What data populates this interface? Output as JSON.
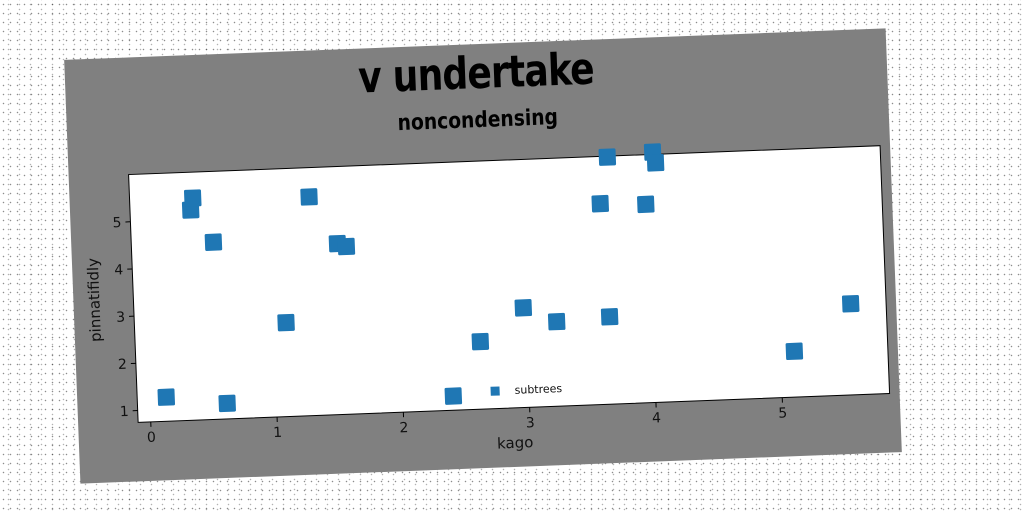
{
  "chart_data": {
    "type": "scatter",
    "title": "v undertake",
    "subtitle": "noncondensing",
    "xlabel": "kago",
    "ylabel": "pinnatifidly",
    "xlim": [
      -0.1,
      5.85
    ],
    "ylim": [
      0.75,
      6.0
    ],
    "xticks": [
      0,
      1,
      2,
      3,
      4,
      5
    ],
    "yticks": [
      1,
      2,
      3,
      4,
      5
    ],
    "grid": false,
    "legend_position": "bottom-center",
    "series": [
      {
        "name": "subtrees",
        "color": "#1f77b4",
        "marker": "square",
        "points": [
          {
            "x": 0.13,
            "y": 1.26
          },
          {
            "x": 0.38,
            "y": 5.2
          },
          {
            "x": 0.4,
            "y": 5.45
          },
          {
            "x": 0.55,
            "y": 4.5
          },
          {
            "x": 0.61,
            "y": 1.08
          },
          {
            "x": 1.1,
            "y": 2.74
          },
          {
            "x": 1.32,
            "y": 5.38
          },
          {
            "x": 1.53,
            "y": 4.37
          },
          {
            "x": 1.6,
            "y": 4.3
          },
          {
            "x": 2.4,
            "y": 1.05
          },
          {
            "x": 2.63,
            "y": 2.18
          },
          {
            "x": 2.98,
            "y": 2.86
          },
          {
            "x": 3.24,
            "y": 2.54
          },
          {
            "x": 3.62,
            "y": 5.0
          },
          {
            "x": 3.66,
            "y": 2.6
          },
          {
            "x": 3.69,
            "y": 5.98
          },
          {
            "x": 3.98,
            "y": 4.95
          },
          {
            "x": 4.05,
            "y": 6.05
          },
          {
            "x": 4.07,
            "y": 5.82
          },
          {
            "x": 5.11,
            "y": 1.72
          },
          {
            "x": 5.57,
            "y": 2.68
          }
        ]
      }
    ]
  }
}
